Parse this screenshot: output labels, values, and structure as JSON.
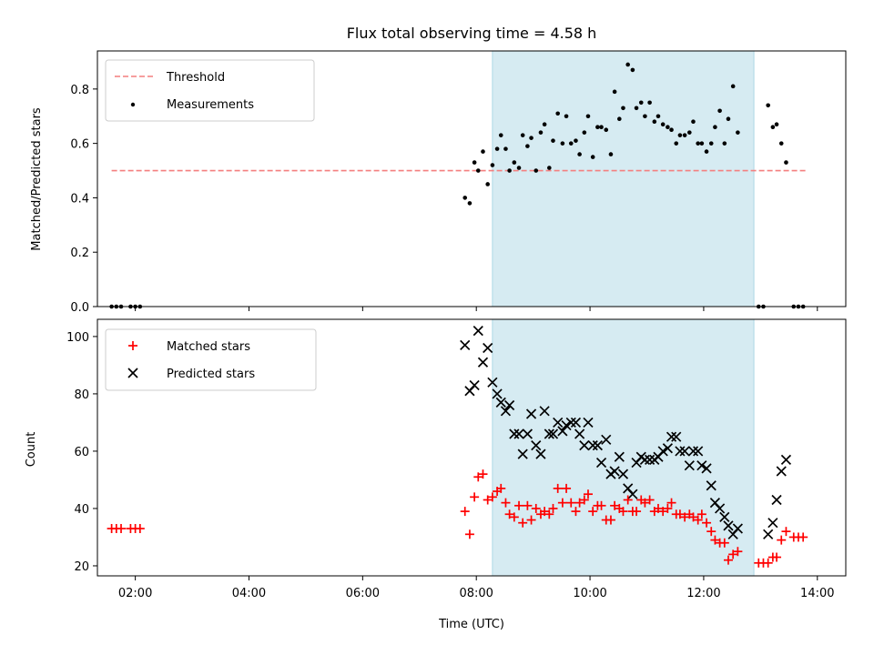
{
  "colors": {
    "threshold": "#f47f7f",
    "measurements": "#000000",
    "matched": "#ff0000",
    "predicted": "#000000",
    "observing_band": "#add8e6"
  },
  "chart_data": [
    {
      "type": "scatter",
      "title": "Flux total observing time = 4.58 h",
      "xlabel": "",
      "ylabel": "Matched/Predicted stars",
      "xlim": [
        "01:20",
        "14:30"
      ],
      "ylim": [
        0,
        0.94
      ],
      "yticks": [
        "0.0",
        "0.2",
        "0.4",
        "0.6",
        "0.8"
      ],
      "grid": false,
      "legend_position": "top-left",
      "shaded_interval": [
        "08:17",
        "12:53"
      ],
      "threshold": {
        "name": "Threshold",
        "y": 0.5,
        "x_range": [
          "01:35",
          "13:50"
        ],
        "style": "dashed"
      },
      "series": [
        {
          "name": "Measurements",
          "points": [
            [
              "01:35",
              0
            ],
            [
              "01:40",
              0
            ],
            [
              "01:45",
              0
            ],
            [
              "01:55",
              0
            ],
            [
              "02:00",
              0
            ],
            [
              "02:05",
              0
            ],
            [
              "07:48",
              0.4
            ],
            [
              "07:53",
              0.38
            ],
            [
              "07:58",
              0.53
            ],
            [
              "08:02",
              0.5
            ],
            [
              "08:07",
              0.57
            ],
            [
              "08:12",
              0.45
            ],
            [
              "08:17",
              0.52
            ],
            [
              "08:22",
              0.58
            ],
            [
              "08:26",
              0.63
            ],
            [
              "08:31",
              0.58
            ],
            [
              "08:35",
              0.5
            ],
            [
              "08:40",
              0.53
            ],
            [
              "08:45",
              0.51
            ],
            [
              "08:49",
              0.63
            ],
            [
              "08:54",
              0.59
            ],
            [
              "08:58",
              0.62
            ],
            [
              "09:03",
              0.5
            ],
            [
              "09:08",
              0.64
            ],
            [
              "09:12",
              0.67
            ],
            [
              "09:17",
              0.51
            ],
            [
              "09:21",
              0.61
            ],
            [
              "09:26",
              0.71
            ],
            [
              "09:31",
              0.6
            ],
            [
              "09:35",
              0.7
            ],
            [
              "09:40",
              0.6
            ],
            [
              "09:45",
              0.61
            ],
            [
              "09:49",
              0.56
            ],
            [
              "09:54",
              0.64
            ],
            [
              "09:58",
              0.7
            ],
            [
              "10:03",
              0.55
            ],
            [
              "10:08",
              0.66
            ],
            [
              "10:12",
              0.66
            ],
            [
              "10:17",
              0.65
            ],
            [
              "10:22",
              0.56
            ],
            [
              "10:26",
              0.79
            ],
            [
              "10:31",
              0.69
            ],
            [
              "10:35",
              0.73
            ],
            [
              "10:40",
              0.89
            ],
            [
              "10:45",
              0.87
            ],
            [
              "10:49",
              0.73
            ],
            [
              "10:54",
              0.75
            ],
            [
              "10:58",
              0.7
            ],
            [
              "11:03",
              0.75
            ],
            [
              "11:08",
              0.68
            ],
            [
              "11:12",
              0.7
            ],
            [
              "11:17",
              0.67
            ],
            [
              "11:22",
              0.66
            ],
            [
              "11:26",
              0.65
            ],
            [
              "11:31",
              0.6
            ],
            [
              "11:35",
              0.63
            ],
            [
              "11:40",
              0.63
            ],
            [
              "11:45",
              0.64
            ],
            [
              "11:49",
              0.68
            ],
            [
              "11:54",
              0.6
            ],
            [
              "11:58",
              0.6
            ],
            [
              "12:03",
              0.57
            ],
            [
              "12:08",
              0.6
            ],
            [
              "12:12",
              0.66
            ],
            [
              "12:17",
              0.72
            ],
            [
              "12:22",
              0.6
            ],
            [
              "12:26",
              0.69
            ],
            [
              "12:31",
              0.81
            ],
            [
              "12:36",
              0.64
            ],
            [
              "12:58",
              0
            ],
            [
              "13:03",
              0
            ],
            [
              "13:08",
              0.74
            ],
            [
              "13:13",
              0.66
            ],
            [
              "13:17",
              0.67
            ],
            [
              "13:22",
              0.6
            ],
            [
              "13:27",
              0.53
            ],
            [
              "13:35",
              0
            ],
            [
              "13:40",
              0
            ],
            [
              "13:45",
              0
            ]
          ]
        }
      ]
    },
    {
      "type": "scatter",
      "title": "",
      "xlabel": "Time (UTC)",
      "ylabel": "Count",
      "xlim": [
        "01:20",
        "14:30"
      ],
      "ylim": [
        16.5,
        106
      ],
      "xticks": [
        "02:00",
        "04:00",
        "06:00",
        "08:00",
        "10:00",
        "12:00",
        "14:00"
      ],
      "yticks": [
        "20",
        "40",
        "60",
        "80",
        "100"
      ],
      "grid": false,
      "legend_position": "top-left",
      "shaded_interval": [
        "08:17",
        "12:53"
      ],
      "series": [
        {
          "name": "Matched stars",
          "marker": "plus",
          "points": [
            [
              "01:35",
              33
            ],
            [
              "01:40",
              33
            ],
            [
              "01:45",
              33
            ],
            [
              "01:55",
              33
            ],
            [
              "02:00",
              33
            ],
            [
              "02:05",
              33
            ],
            [
              "07:48",
              39
            ],
            [
              "07:53",
              31
            ],
            [
              "07:58",
              44
            ],
            [
              "08:02",
              51
            ],
            [
              "08:07",
              52
            ],
            [
              "08:12",
              43
            ],
            [
              "08:17",
              44
            ],
            [
              "08:22",
              46
            ],
            [
              "08:26",
              47
            ],
            [
              "08:31",
              42
            ],
            [
              "08:35",
              38
            ],
            [
              "08:40",
              37
            ],
            [
              "08:45",
              41
            ],
            [
              "08:49",
              35
            ],
            [
              "08:54",
              41
            ],
            [
              "08:58",
              36
            ],
            [
              "09:03",
              40
            ],
            [
              "09:08",
              38
            ],
            [
              "09:12",
              39
            ],
            [
              "09:17",
              38
            ],
            [
              "09:21",
              40
            ],
            [
              "09:26",
              47
            ],
            [
              "09:31",
              42
            ],
            [
              "09:35",
              47
            ],
            [
              "09:40",
              42
            ],
            [
              "09:45",
              39
            ],
            [
              "09:49",
              42
            ],
            [
              "09:54",
              43
            ],
            [
              "09:58",
              45
            ],
            [
              "10:03",
              39
            ],
            [
              "10:08",
              41
            ],
            [
              "10:12",
              41
            ],
            [
              "10:17",
              36
            ],
            [
              "10:22",
              36
            ],
            [
              "10:26",
              41
            ],
            [
              "10:31",
              40
            ],
            [
              "10:35",
              39
            ],
            [
              "10:40",
              43
            ],
            [
              "10:45",
              39
            ],
            [
              "10:49",
              39
            ],
            [
              "10:54",
              43
            ],
            [
              "10:58",
              42
            ],
            [
              "11:03",
              43
            ],
            [
              "11:08",
              39
            ],
            [
              "11:12",
              40
            ],
            [
              "11:17",
              39
            ],
            [
              "11:22",
              40
            ],
            [
              "11:26",
              42
            ],
            [
              "11:31",
              38
            ],
            [
              "11:35",
              38
            ],
            [
              "11:40",
              37
            ],
            [
              "11:45",
              38
            ],
            [
              "11:49",
              37
            ],
            [
              "11:54",
              36
            ],
            [
              "11:58",
              38
            ],
            [
              "12:03",
              35
            ],
            [
              "12:08",
              32
            ],
            [
              "12:12",
              29
            ],
            [
              "12:17",
              28
            ],
            [
              "12:22",
              28
            ],
            [
              "12:26",
              22
            ],
            [
              "12:31",
              24
            ],
            [
              "12:36",
              25
            ],
            [
              "12:58",
              21
            ],
            [
              "13:03",
              21
            ],
            [
              "13:08",
              21
            ],
            [
              "13:13",
              23
            ],
            [
              "13:17",
              23
            ],
            [
              "13:22",
              29
            ],
            [
              "13:27",
              32
            ],
            [
              "13:35",
              30
            ],
            [
              "13:40",
              30
            ],
            [
              "13:45",
              30
            ]
          ]
        },
        {
          "name": "Predicted stars",
          "marker": "x",
          "points": [
            [
              "07:48",
              97
            ],
            [
              "07:53",
              81
            ],
            [
              "07:58",
              83
            ],
            [
              "08:02",
              102
            ],
            [
              "08:07",
              91
            ],
            [
              "08:12",
              96
            ],
            [
              "08:17",
              84
            ],
            [
              "08:22",
              80
            ],
            [
              "08:26",
              77
            ],
            [
              "08:31",
              74
            ],
            [
              "08:35",
              76
            ],
            [
              "08:40",
              66
            ],
            [
              "08:45",
              66
            ],
            [
              "08:49",
              59
            ],
            [
              "08:54",
              66
            ],
            [
              "08:58",
              73
            ],
            [
              "09:03",
              62
            ],
            [
              "09:08",
              59
            ],
            [
              "09:12",
              74
            ],
            [
              "09:17",
              66
            ],
            [
              "09:21",
              66
            ],
            [
              "09:26",
              70
            ],
            [
              "09:31",
              67
            ],
            [
              "09:35",
              69
            ],
            [
              "09:40",
              70
            ],
            [
              "09:45",
              70
            ],
            [
              "09:49",
              66
            ],
            [
              "09:54",
              62
            ],
            [
              "09:58",
              70
            ],
            [
              "10:03",
              62
            ],
            [
              "10:08",
              62
            ],
            [
              "10:12",
              56
            ],
            [
              "10:17",
              64
            ],
            [
              "10:22",
              52
            ],
            [
              "10:26",
              53
            ],
            [
              "10:31",
              58
            ],
            [
              "10:35",
              52
            ],
            [
              "10:40",
              47
            ],
            [
              "10:45",
              45
            ],
            [
              "10:49",
              56
            ],
            [
              "10:54",
              58
            ],
            [
              "10:58",
              57
            ],
            [
              "11:03",
              57
            ],
            [
              "11:08",
              57
            ],
            [
              "11:12",
              58
            ],
            [
              "11:17",
              60
            ],
            [
              "11:22",
              61
            ],
            [
              "11:26",
              65
            ],
            [
              "11:31",
              65
            ],
            [
              "11:35",
              60
            ],
            [
              "11:40",
              60
            ],
            [
              "11:45",
              55
            ],
            [
              "11:49",
              60
            ],
            [
              "11:54",
              60
            ],
            [
              "11:58",
              55
            ],
            [
              "12:03",
              54
            ],
            [
              "12:08",
              48
            ],
            [
              "12:12",
              42
            ],
            [
              "12:17",
              40
            ],
            [
              "12:22",
              37
            ],
            [
              "12:26",
              34
            ],
            [
              "12:31",
              31
            ],
            [
              "12:36",
              33
            ],
            [
              "13:08",
              31
            ],
            [
              "13:13",
              35
            ],
            [
              "13:17",
              43
            ],
            [
              "13:22",
              53
            ],
            [
              "13:27",
              57
            ]
          ]
        }
      ]
    }
  ]
}
